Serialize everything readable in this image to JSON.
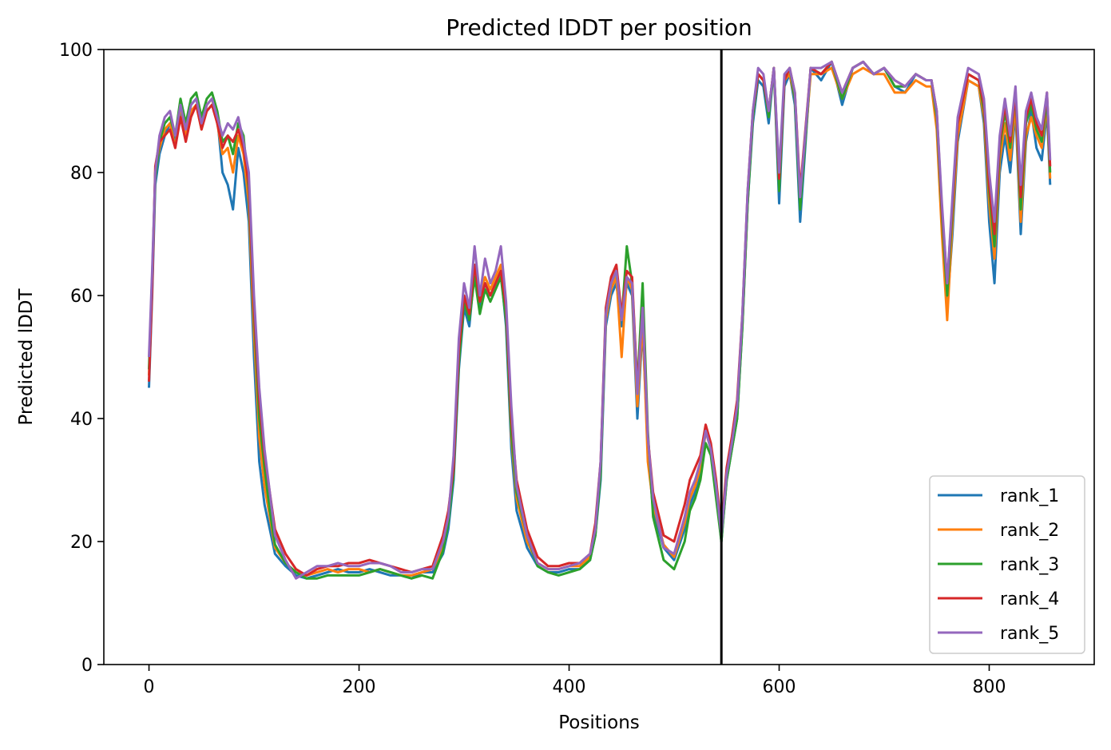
{
  "chart_data": {
    "type": "line",
    "title": "Predicted lDDT per position",
    "xlabel": "Positions",
    "ylabel": "Predicted lDDT",
    "xlim": [
      -43,
      900
    ],
    "ylim": [
      0,
      100
    ],
    "xticks": [
      0,
      200,
      400,
      600,
      800
    ],
    "yticks": [
      0,
      20,
      40,
      60,
      80,
      100
    ],
    "grid": false,
    "legend_position": "lower right",
    "vline_x": 545,
    "series_x": [
      0,
      3,
      6,
      10,
      15,
      20,
      25,
      30,
      35,
      40,
      45,
      50,
      55,
      60,
      65,
      70,
      75,
      80,
      85,
      90,
      95,
      100,
      105,
      110,
      115,
      120,
      130,
      140,
      150,
      160,
      170,
      180,
      190,
      200,
      210,
      220,
      230,
      240,
      250,
      260,
      270,
      280,
      285,
      290,
      295,
      300,
      305,
      310,
      315,
      320,
      325,
      330,
      335,
      340,
      345,
      350,
      360,
      370,
      380,
      390,
      400,
      410,
      420,
      425,
      430,
      435,
      440,
      445,
      450,
      455,
      460,
      465,
      470,
      475,
      480,
      490,
      500,
      510,
      515,
      520,
      525,
      530,
      535,
      540,
      545,
      550,
      555,
      560,
      565,
      570,
      575,
      580,
      585,
      590,
      595,
      600,
      605,
      610,
      615,
      620,
      630,
      640,
      650,
      660,
      670,
      680,
      690,
      700,
      710,
      720,
      730,
      740,
      745,
      750,
      755,
      760,
      765,
      770,
      780,
      790,
      795,
      800,
      805,
      810,
      815,
      820,
      825,
      830,
      835,
      840,
      845,
      850,
      855,
      858
    ],
    "series": [
      {
        "name": "rank_1",
        "color": "#1f77b4",
        "values": [
          45,
          60,
          78,
          83,
          86,
          88,
          85,
          90,
          87,
          91,
          92,
          88,
          90,
          91,
          89,
          80,
          78,
          74,
          84,
          80,
          72,
          50,
          33,
          26,
          22,
          18,
          16,
          14.5,
          14,
          14.5,
          15,
          15.5,
          15,
          15,
          15.5,
          15,
          14.5,
          14.5,
          14,
          15,
          15,
          18,
          22,
          30,
          48,
          58,
          55,
          64,
          58,
          62,
          60,
          62,
          64,
          55,
          35,
          25,
          19,
          16,
          15,
          15,
          15.5,
          15.5,
          17,
          21,
          30,
          55,
          60,
          62,
          55,
          62,
          60,
          40,
          55,
          35,
          25,
          19,
          17,
          22,
          26,
          28,
          31,
          38,
          35,
          28,
          20,
          30,
          35,
          40,
          55,
          75,
          88,
          95,
          94,
          88,
          97,
          75,
          94,
          96,
          91,
          72,
          97,
          95,
          98,
          91,
          97,
          98,
          96,
          97,
          94,
          93,
          96,
          95,
          95,
          88,
          72,
          58,
          70,
          85,
          95,
          94,
          88,
          72,
          62,
          80,
          86,
          80,
          90,
          70,
          85,
          90,
          84,
          82,
          90,
          78
        ]
      },
      {
        "name": "rank_2",
        "color": "#ff7f0e",
        "values": [
          47,
          62,
          80,
          84,
          87,
          88,
          84,
          91,
          86,
          90,
          91,
          87,
          91,
          92,
          88,
          83,
          84,
          80,
          86,
          83,
          75,
          54,
          37,
          29,
          24,
          19,
          16.5,
          15,
          14.5,
          15,
          15.5,
          15,
          15.5,
          15.5,
          15,
          15.5,
          15,
          14.5,
          14.5,
          15,
          15.5,
          19,
          24,
          33,
          50,
          60,
          57,
          65,
          60,
          63,
          61,
          63,
          65,
          57,
          37,
          27,
          20,
          16.5,
          15.5,
          15.5,
          16,
          16,
          17.5,
          22,
          32,
          56,
          61,
          63,
          50,
          63,
          61,
          42,
          56,
          33,
          26,
          19.5,
          17.5,
          23,
          27,
          29,
          32,
          38,
          35,
          28,
          21,
          31,
          36,
          42,
          56,
          76,
          89,
          96,
          95,
          90,
          97,
          78,
          95,
          96,
          92,
          75,
          96,
          96,
          97,
          92,
          96,
          97,
          96,
          96,
          93,
          93,
          95,
          94,
          94,
          87,
          70,
          56,
          72,
          86,
          95,
          94,
          89,
          75,
          66,
          82,
          88,
          82,
          91,
          72,
          86,
          89,
          86,
          84,
          91,
          79
        ]
      },
      {
        "name": "rank_3",
        "color": "#2ca02c",
        "values": [
          48,
          63,
          79,
          85,
          88,
          89,
          86,
          92,
          88,
          92,
          93,
          89,
          92,
          93,
          90,
          85,
          86,
          83,
          88,
          86,
          77,
          57,
          40,
          32,
          25,
          19.5,
          16.5,
          15,
          14,
          14,
          14.5,
          14.5,
          14.5,
          14.5,
          15,
          15.5,
          15,
          14.5,
          14,
          14.5,
          14,
          18.5,
          23,
          31,
          49,
          59,
          56,
          63,
          57,
          61,
          59,
          61,
          63,
          56,
          38,
          28,
          21,
          16,
          15,
          14.5,
          15,
          15.5,
          17,
          21,
          31,
          57,
          62,
          64,
          56,
          68,
          62,
          45,
          62,
          38,
          24,
          17,
          15.5,
          20,
          25,
          27,
          30,
          36,
          34,
          27,
          20,
          30,
          35,
          40,
          55,
          75,
          89,
          96,
          95,
          89,
          97,
          77,
          95,
          97,
          92,
          74,
          97,
          96,
          98,
          92,
          97,
          98,
          96,
          97,
          94,
          94,
          96,
          95,
          95,
          89,
          73,
          60,
          74,
          88,
          96,
          95,
          90,
          77,
          68,
          84,
          90,
          84,
          93,
          74,
          88,
          91,
          87,
          85,
          92,
          80
        ]
      },
      {
        "name": "rank_4",
        "color": "#d62728",
        "values": [
          46,
          61,
          81,
          85,
          86,
          87,
          84,
          89,
          85,
          89,
          91,
          87,
          90,
          91,
          88,
          84,
          86,
          85,
          87,
          84,
          78,
          58,
          43,
          34,
          28,
          22,
          18,
          15.5,
          14.5,
          15.5,
          16,
          16,
          16.5,
          16.5,
          17,
          16.5,
          16,
          15.5,
          15,
          15.5,
          16,
          21,
          25,
          32,
          51,
          60,
          57,
          65,
          59,
          62,
          60,
          62,
          64,
          58,
          40,
          30,
          22,
          17.5,
          16,
          16,
          16.5,
          16.5,
          18,
          23,
          33,
          58,
          63,
          65,
          57,
          64,
          63,
          45,
          58,
          37,
          28,
          21,
          20,
          26,
          30,
          32,
          34,
          39,
          36,
          30,
          22,
          32,
          37,
          43,
          57,
          77,
          90,
          96,
          95,
          90,
          97,
          79,
          95,
          97,
          93,
          77,
          97,
          96,
          98,
          93,
          97,
          98,
          96,
          97,
          95,
          94,
          96,
          95,
          95,
          90,
          74,
          62,
          75,
          88,
          96,
          95,
          91,
          78,
          70,
          85,
          91,
          85,
          93,
          76,
          89,
          92,
          88,
          86,
          93,
          81
        ]
      },
      {
        "name": "rank_5",
        "color": "#9467bd",
        "values": [
          50,
          64,
          80,
          86,
          89,
          90,
          86,
          91,
          87,
          91,
          92,
          88,
          91,
          92,
          89,
          86,
          88,
          87,
          89,
          85,
          80,
          60,
          45,
          35,
          28,
          21,
          17,
          14,
          15,
          16,
          16,
          16.5,
          16,
          16,
          16.5,
          16.5,
          16,
          15,
          15,
          15.5,
          15.5,
          20,
          24,
          34,
          53,
          62,
          58,
          68,
          60,
          66,
          62,
          64,
          68,
          59,
          42,
          29,
          21,
          16.5,
          15.5,
          15.5,
          16,
          16.5,
          18,
          22,
          33,
          57,
          62,
          64,
          56,
          63,
          62,
          44,
          58,
          37,
          27,
          19,
          18,
          24,
          28,
          30,
          33,
          38,
          35,
          29,
          21,
          31,
          36,
          42,
          57,
          77,
          90,
          97,
          96,
          90,
          97,
          80,
          96,
          97,
          93,
          76,
          97,
          97,
          98,
          93,
          97,
          98,
          96,
          97,
          95,
          94,
          96,
          95,
          95,
          90,
          75,
          62,
          76,
          89,
          97,
          96,
          92,
          80,
          72,
          86,
          92,
          86,
          94,
          78,
          90,
          93,
          89,
          87,
          93,
          82
        ]
      }
    ]
  }
}
